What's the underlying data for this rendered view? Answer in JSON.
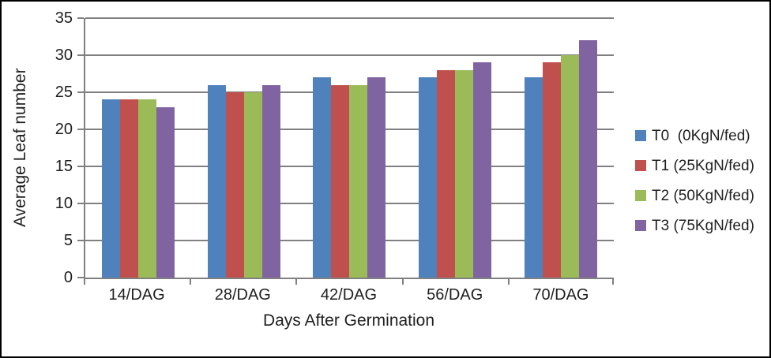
{
  "figure": {
    "background": "#ffffff",
    "border_color": "#000000",
    "grid_color": "#808080",
    "text_color": "#1f1f1f"
  },
  "chart_data": {
    "type": "bar",
    "title": "",
    "categories": [
      "14/DAG",
      "28/DAG",
      "42/DAG",
      "56/DAG",
      "70/DAG"
    ],
    "series": [
      {
        "name": "T0  (0KgN/fed)",
        "color": "#4f81bd",
        "values": [
          24,
          26,
          27,
          27,
          27
        ]
      },
      {
        "name": "T1 (25KgN/fed)",
        "color": "#c0504d",
        "values": [
          24,
          25,
          26,
          28,
          29
        ]
      },
      {
        "name": "T2 (50KgN/fed)",
        "color": "#9bbb59",
        "values": [
          24,
          25,
          26,
          28,
          30
        ]
      },
      {
        "name": "T3 (75KgN/fed)",
        "color": "#8064a2",
        "values": [
          23,
          26,
          27,
          29,
          32
        ]
      }
    ],
    "xlabel": "Days After Germination",
    "ylabel": "Average Leaf number",
    "ylim": [
      0,
      35
    ],
    "yticks": [
      0,
      5,
      10,
      15,
      20,
      25,
      30,
      35
    ],
    "grid": true,
    "legend_position": "right"
  }
}
